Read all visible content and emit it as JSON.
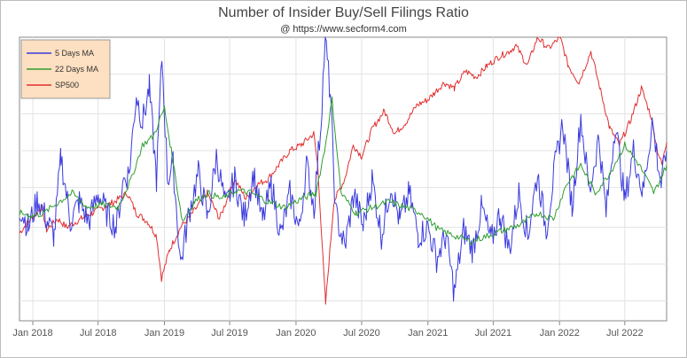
{
  "title": "Number of Insider Buy/Sell Filings Ratio",
  "subtitle": "@ https://www.secform4.com",
  "chart_data": {
    "type": "line",
    "title": "Number of Insider Buy/Sell Filings Ratio",
    "subtitle": "@ https://www.secform4.com",
    "xlabel": "",
    "ylabel": "",
    "x_range": [
      "2017-11-25",
      "2022-10-25"
    ],
    "x_ticks": [
      "Jan 2018",
      "Jul 2018",
      "Jan 2019",
      "Jul 2019",
      "Jan 2020",
      "Jul 2020",
      "Jan 2021",
      "Jul 2021",
      "Jan 2022",
      "Jul 2022"
    ],
    "y_axis_labels_shown": false,
    "grid": true,
    "legend_position": "top-left",
    "series": [
      {
        "name": "5 Days MA",
        "color": "#3a3adf",
        "points": [
          [
            "2017-11-25",
            0.4
          ],
          [
            "2017-12-20",
            0.33
          ],
          [
            "2018-01-15",
            0.43
          ],
          [
            "2018-02-10",
            0.35
          ],
          [
            "2018-03-01",
            0.3
          ],
          [
            "2018-03-20",
            0.58
          ],
          [
            "2018-04-15",
            0.35
          ],
          [
            "2018-05-10",
            0.42
          ],
          [
            "2018-06-05",
            0.35
          ],
          [
            "2018-07-01",
            0.45
          ],
          [
            "2018-07-25",
            0.38
          ],
          [
            "2018-08-20",
            0.33
          ],
          [
            "2018-09-10",
            0.5
          ],
          [
            "2018-09-25",
            0.52
          ],
          [
            "2018-10-15",
            0.8
          ],
          [
            "2018-11-01",
            0.7
          ],
          [
            "2018-11-20",
            0.82
          ],
          [
            "2018-12-10",
            0.5
          ],
          [
            "2018-12-25",
            0.93
          ],
          [
            "2019-01-10",
            0.5
          ],
          [
            "2019-01-25",
            0.55
          ],
          [
            "2019-02-15",
            0.2
          ],
          [
            "2019-03-10",
            0.38
          ],
          [
            "2019-04-05",
            0.52
          ],
          [
            "2019-05-01",
            0.36
          ],
          [
            "2019-05-25",
            0.58
          ],
          [
            "2019-06-20",
            0.4
          ],
          [
            "2019-07-15",
            0.5
          ],
          [
            "2019-08-10",
            0.36
          ],
          [
            "2019-09-05",
            0.52
          ],
          [
            "2019-09-30",
            0.35
          ],
          [
            "2019-10-25",
            0.48
          ],
          [
            "2019-11-20",
            0.3
          ],
          [
            "2019-12-15",
            0.45
          ],
          [
            "2020-01-10",
            0.32
          ],
          [
            "2020-01-30",
            0.55
          ],
          [
            "2020-02-20",
            0.4
          ],
          [
            "2020-03-10",
            0.7
          ],
          [
            "2020-03-22",
            1.0
          ],
          [
            "2020-04-05",
            0.8
          ],
          [
            "2020-04-20",
            0.38
          ],
          [
            "2020-05-15",
            0.26
          ],
          [
            "2020-06-10",
            0.45
          ],
          [
            "2020-07-05",
            0.33
          ],
          [
            "2020-07-30",
            0.5
          ],
          [
            "2020-08-25",
            0.3
          ],
          [
            "2020-09-20",
            0.48
          ],
          [
            "2020-10-15",
            0.35
          ],
          [
            "2020-11-10",
            0.45
          ],
          [
            "2020-12-05",
            0.3
          ],
          [
            "2021-01-01",
            0.33
          ],
          [
            "2021-01-25",
            0.22
          ],
          [
            "2021-02-20",
            0.3
          ],
          [
            "2021-03-15",
            0.1
          ],
          [
            "2021-04-10",
            0.32
          ],
          [
            "2021-05-05",
            0.25
          ],
          [
            "2021-05-30",
            0.4
          ],
          [
            "2021-06-25",
            0.28
          ],
          [
            "2021-07-20",
            0.38
          ],
          [
            "2021-08-15",
            0.25
          ],
          [
            "2021-09-10",
            0.45
          ],
          [
            "2021-10-05",
            0.3
          ],
          [
            "2021-11-01",
            0.52
          ],
          [
            "2021-11-25",
            0.32
          ],
          [
            "2021-12-20",
            0.55
          ],
          [
            "2022-01-10",
            0.7
          ],
          [
            "2022-02-05",
            0.4
          ],
          [
            "2022-03-01",
            0.72
          ],
          [
            "2022-03-25",
            0.45
          ],
          [
            "2022-04-20",
            0.65
          ],
          [
            "2022-05-10",
            0.38
          ],
          [
            "2022-06-05",
            0.7
          ],
          [
            "2022-07-01",
            0.42
          ],
          [
            "2022-07-25",
            0.6
          ],
          [
            "2022-08-20",
            0.45
          ],
          [
            "2022-09-15",
            0.7
          ],
          [
            "2022-10-10",
            0.48
          ],
          [
            "2022-10-25",
            0.6
          ]
        ]
      },
      {
        "name": "22 Days MA",
        "color": "#2f9e2f",
        "points": [
          [
            "2017-11-25",
            0.38
          ],
          [
            "2018-01-01",
            0.37
          ],
          [
            "2018-02-01",
            0.38
          ],
          [
            "2018-03-15",
            0.42
          ],
          [
            "2018-04-20",
            0.45
          ],
          [
            "2018-06-01",
            0.4
          ],
          [
            "2018-07-15",
            0.41
          ],
          [
            "2018-08-25",
            0.4
          ],
          [
            "2018-10-01",
            0.5
          ],
          [
            "2018-11-01",
            0.62
          ],
          [
            "2018-12-01",
            0.65
          ],
          [
            "2019-01-01",
            0.75
          ],
          [
            "2019-01-20",
            0.6
          ],
          [
            "2019-02-20",
            0.35
          ],
          [
            "2019-03-25",
            0.42
          ],
          [
            "2019-05-01",
            0.45
          ],
          [
            "2019-06-10",
            0.43
          ],
          [
            "2019-07-20",
            0.46
          ],
          [
            "2019-09-01",
            0.45
          ],
          [
            "2019-10-15",
            0.42
          ],
          [
            "2019-12-01",
            0.4
          ],
          [
            "2020-01-15",
            0.43
          ],
          [
            "2020-02-25",
            0.45
          ],
          [
            "2020-03-20",
            0.6
          ],
          [
            "2020-04-10",
            0.78
          ],
          [
            "2020-05-05",
            0.45
          ],
          [
            "2020-06-15",
            0.38
          ],
          [
            "2020-08-01",
            0.4
          ],
          [
            "2020-09-15",
            0.42
          ],
          [
            "2020-11-01",
            0.4
          ],
          [
            "2020-12-15",
            0.38
          ],
          [
            "2021-02-01",
            0.32
          ],
          [
            "2021-03-15",
            0.3
          ],
          [
            "2021-05-01",
            0.28
          ],
          [
            "2021-06-15",
            0.3
          ],
          [
            "2021-08-01",
            0.32
          ],
          [
            "2021-09-15",
            0.34
          ],
          [
            "2021-11-01",
            0.38
          ],
          [
            "2021-12-15",
            0.36
          ],
          [
            "2022-01-20",
            0.48
          ],
          [
            "2022-03-01",
            0.55
          ],
          [
            "2022-04-10",
            0.45
          ],
          [
            "2022-05-20",
            0.52
          ],
          [
            "2022-07-01",
            0.62
          ],
          [
            "2022-08-10",
            0.55
          ],
          [
            "2022-09-20",
            0.45
          ],
          [
            "2022-10-25",
            0.55
          ]
        ]
      },
      {
        "name": "SP500",
        "color": "#e03030",
        "points": [
          [
            "2017-11-25",
            0.31
          ],
          [
            "2017-12-20",
            0.35
          ],
          [
            "2018-01-26",
            0.4
          ],
          [
            "2018-02-08",
            0.32
          ],
          [
            "2018-03-10",
            0.36
          ],
          [
            "2018-04-05",
            0.33
          ],
          [
            "2018-05-15",
            0.36
          ],
          [
            "2018-06-15",
            0.38
          ],
          [
            "2018-07-15",
            0.4
          ],
          [
            "2018-08-15",
            0.42
          ],
          [
            "2018-09-20",
            0.45
          ],
          [
            "2018-10-15",
            0.38
          ],
          [
            "2018-11-15",
            0.35
          ],
          [
            "2018-12-10",
            0.3
          ],
          [
            "2018-12-24",
            0.15
          ],
          [
            "2019-01-15",
            0.25
          ],
          [
            "2019-02-15",
            0.33
          ],
          [
            "2019-03-20",
            0.38
          ],
          [
            "2019-04-30",
            0.45
          ],
          [
            "2019-06-03",
            0.36
          ],
          [
            "2019-07-15",
            0.5
          ],
          [
            "2019-08-15",
            0.43
          ],
          [
            "2019-09-15",
            0.48
          ],
          [
            "2019-10-15",
            0.5
          ],
          [
            "2019-11-15",
            0.55
          ],
          [
            "2019-12-15",
            0.6
          ],
          [
            "2020-01-15",
            0.62
          ],
          [
            "2020-02-19",
            0.66
          ],
          [
            "2020-03-01",
            0.55
          ],
          [
            "2020-03-23",
            0.06
          ],
          [
            "2020-04-15",
            0.42
          ],
          [
            "2020-05-15",
            0.5
          ],
          [
            "2020-06-08",
            0.62
          ],
          [
            "2020-07-01",
            0.58
          ],
          [
            "2020-08-01",
            0.68
          ],
          [
            "2020-09-02",
            0.74
          ],
          [
            "2020-10-01",
            0.66
          ],
          [
            "2020-11-01",
            0.7
          ],
          [
            "2020-12-01",
            0.76
          ],
          [
            "2021-01-01",
            0.78
          ],
          [
            "2021-02-15",
            0.84
          ],
          [
            "2021-03-15",
            0.82
          ],
          [
            "2021-04-15",
            0.88
          ],
          [
            "2021-05-15",
            0.86
          ],
          [
            "2021-06-15",
            0.9
          ],
          [
            "2021-07-15",
            0.93
          ],
          [
            "2021-08-15",
            0.95
          ],
          [
            "2021-09-02",
            0.97
          ],
          [
            "2021-10-04",
            0.9
          ],
          [
            "2021-11-01",
            1.0
          ],
          [
            "2021-12-01",
            0.96
          ],
          [
            "2022-01-03",
            1.0
          ],
          [
            "2022-01-25",
            0.9
          ],
          [
            "2022-02-24",
            0.84
          ],
          [
            "2022-03-29",
            0.95
          ],
          [
            "2022-05-01",
            0.78
          ],
          [
            "2022-05-20",
            0.68
          ],
          [
            "2022-06-16",
            0.62
          ],
          [
            "2022-07-15",
            0.7
          ],
          [
            "2022-08-16",
            0.82
          ],
          [
            "2022-09-12",
            0.72
          ],
          [
            "2022-09-30",
            0.6
          ],
          [
            "2022-10-12",
            0.55
          ],
          [
            "2022-10-25",
            0.63
          ]
        ]
      }
    ]
  }
}
